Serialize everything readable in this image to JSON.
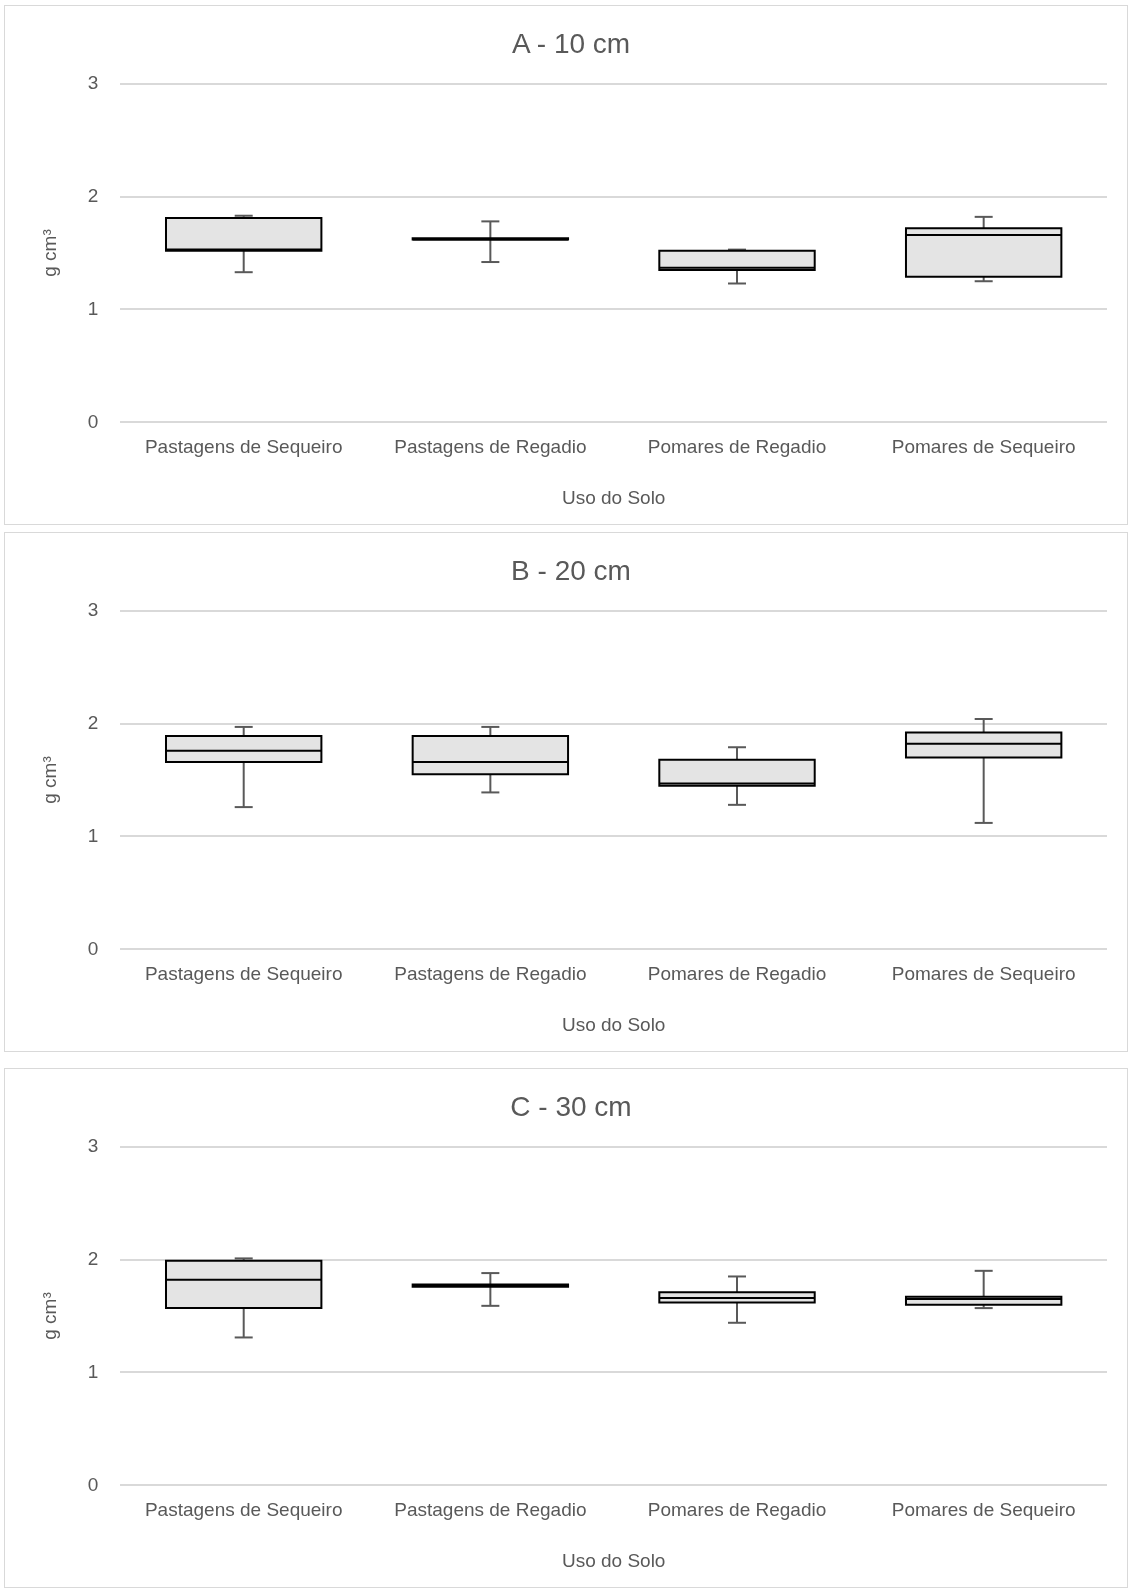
{
  "chart_data": [
    {
      "type": "box",
      "title": "A - 10 cm",
      "xlabel": "Uso do Solo",
      "ylabel": "g cm³",
      "color": "#e4e4e4",
      "grid": "y",
      "ylim": [
        0,
        3
      ],
      "yticks": [
        0,
        1,
        2,
        3
      ],
      "categories": [
        "Pastagens de Sequeiro",
        "Pastagens de Regadio",
        "Pomares de Regadio",
        "Pomares de Sequeiro"
      ],
      "boxes": [
        {
          "low": 1.33,
          "q1": 1.52,
          "median": 1.53,
          "q3": 1.81,
          "high": 1.83
        },
        {
          "low": 1.42,
          "q1": 1.62,
          "median": 1.62,
          "q3": 1.63,
          "high": 1.78
        },
        {
          "low": 1.23,
          "q1": 1.35,
          "median": 1.37,
          "q3": 1.52,
          "high": 1.53
        },
        {
          "low": 1.25,
          "q1": 1.29,
          "median": 1.66,
          "q3": 1.72,
          "high": 1.82
        }
      ]
    },
    {
      "type": "box",
      "title": "B - 20 cm",
      "xlabel": "Uso do Solo",
      "ylabel": "g cm³",
      "color": "#e4e4e4",
      "grid": "y",
      "ylim": [
        0,
        3
      ],
      "yticks": [
        0,
        1,
        2,
        3
      ],
      "categories": [
        "Pastagens de Sequeiro",
        "Pastagens de Regadio",
        "Pomares de Regadio",
        "Pomares de Sequeiro"
      ],
      "boxes": [
        {
          "low": 1.26,
          "q1": 1.66,
          "median": 1.76,
          "q3": 1.89,
          "high": 1.97
        },
        {
          "low": 1.39,
          "q1": 1.55,
          "median": 1.66,
          "q3": 1.89,
          "high": 1.97
        },
        {
          "low": 1.28,
          "q1": 1.45,
          "median": 1.47,
          "q3": 1.68,
          "high": 1.79
        },
        {
          "low": 1.12,
          "q1": 1.7,
          "median": 1.82,
          "q3": 1.92,
          "high": 2.04
        }
      ]
    },
    {
      "type": "box",
      "title": "C - 30 cm",
      "xlabel": "Uso do Solo",
      "ylabel": "g cm³",
      "color": "#e4e4e4",
      "grid": "y",
      "ylim": [
        0,
        3
      ],
      "yticks": [
        0,
        1,
        2,
        3
      ],
      "categories": [
        "Pastagens de Sequeiro",
        "Pastagens de Regadio",
        "Pomares de Regadio",
        "Pomares de Sequeiro"
      ],
      "boxes": [
        {
          "low": 1.31,
          "q1": 1.57,
          "median": 1.82,
          "q3": 1.99,
          "high": 2.01
        },
        {
          "low": 1.59,
          "q1": 1.76,
          "median": 1.77,
          "q3": 1.78,
          "high": 1.88
        },
        {
          "low": 1.44,
          "q1": 1.62,
          "median": 1.66,
          "q3": 1.71,
          "high": 1.85
        },
        {
          "low": 1.57,
          "q1": 1.6,
          "median": 1.65,
          "q3": 1.67,
          "high": 1.9
        }
      ]
    }
  ]
}
